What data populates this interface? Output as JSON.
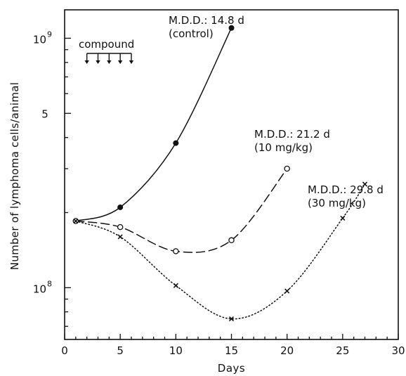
{
  "chart_data": {
    "type": "line",
    "xlabel": "Days",
    "ylabel": "Number of lymphoma cells/animal",
    "xlim": [
      0,
      30
    ],
    "ylim": [
      62000000.0,
      1300000000.0
    ],
    "y_scale": "log",
    "x_ticks": [
      0,
      5,
      10,
      15,
      20,
      25,
      30
    ],
    "y_tick_labels": [
      {
        "value": 1000000000.0,
        "label": "10",
        "sup": "9"
      },
      {
        "value": 500000000.0,
        "label": "5",
        "sup": ""
      },
      {
        "value": 100000000.0,
        "label": "10",
        "sup": "8"
      }
    ],
    "series": [
      {
        "name": "control",
        "marker": "filled-circle",
        "line_style": "solid",
        "x": [
          1,
          5,
          10,
          15
        ],
        "y": [
          185000000.0,
          210000000.0,
          380000000.0,
          1100000000.0
        ],
        "label_lines": [
          "M.D.D.: 14.8 d",
          "(control)"
        ]
      },
      {
        "name": "10 mg/kg",
        "marker": "open-circle",
        "line_style": "dashed",
        "x": [
          1,
          5,
          10,
          15,
          20
        ],
        "y": [
          185000000.0,
          175000000.0,
          140000000.0,
          155000000.0,
          300000000.0
        ],
        "label_lines": [
          "M.D.D.: 21.2 d",
          "(10 mg/kg)"
        ]
      },
      {
        "name": "30 mg/kg",
        "marker": "cross",
        "line_style": "dotted",
        "x": [
          1,
          5,
          10,
          15,
          20,
          25,
          27
        ],
        "y": [
          185000000.0,
          160000000.0,
          102000000.0,
          75000000.0,
          97000000.0,
          190000000.0,
          260000000.0
        ],
        "label_lines": [
          "M.D.D.: 29.8 d",
          "(30 mg/kg)"
        ]
      }
    ],
    "annotation": {
      "text": "compound",
      "arrow_days": [
        2,
        3,
        4,
        5,
        6
      ]
    },
    "grid": false,
    "legend": "none"
  }
}
